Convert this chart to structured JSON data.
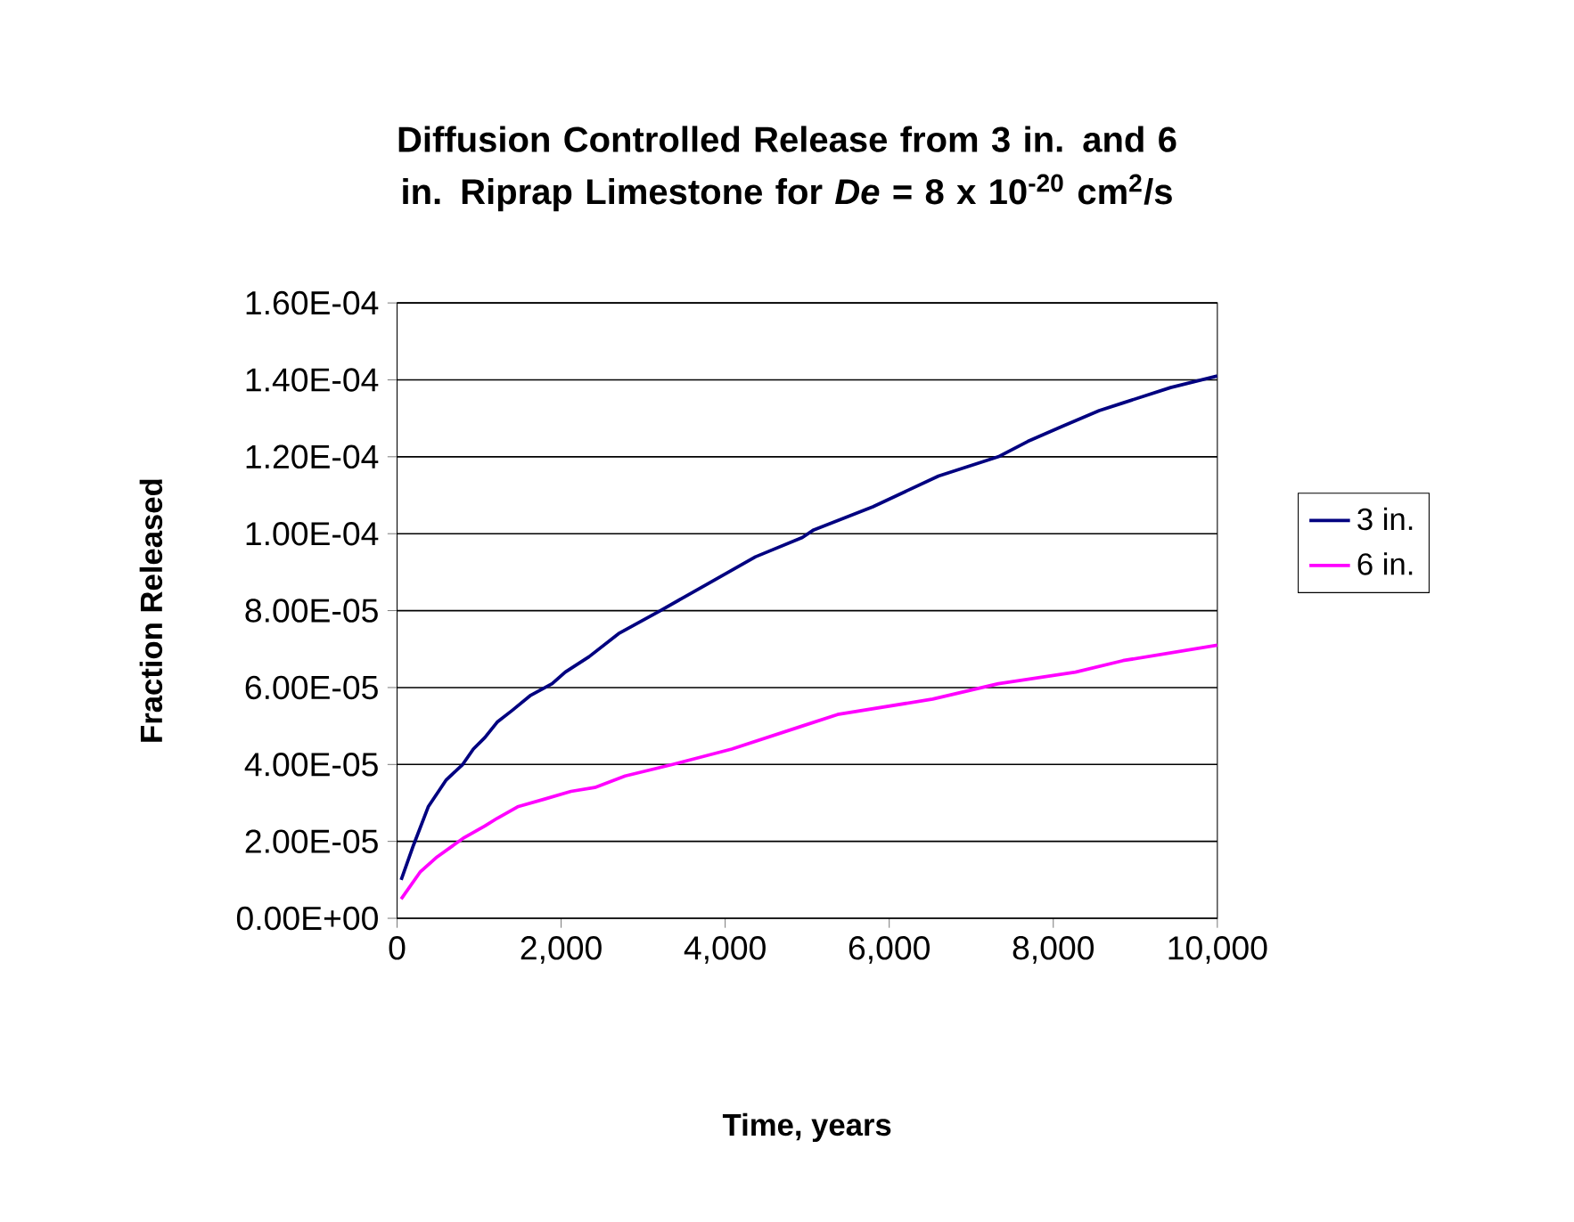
{
  "chart_data": {
    "type": "line",
    "title": "Diffusion Controlled Release from 3 in. and 6 in. Riprap Limestone for *De* = 8 x 10$^{-20}$ cm$^{2}$/s",
    "xlabel": "Time, years",
    "ylabel": "Fraction Released",
    "xlim": [
      0,
      10000
    ],
    "ylim": [
      0,
      0.00016
    ],
    "xticks": [
      0,
      {
        "value": 2000,
        "label": "2,000"
      },
      {
        "value": 4000,
        "label": "4,000"
      },
      {
        "value": 6000,
        "label": "6,000"
      },
      {
        "value": 8000,
        "label": "8,000"
      },
      {
        "value": 10000,
        "label": "10,000"
      }
    ],
    "yticks": [
      {
        "value": 0,
        "label": "0.00E+00"
      },
      {
        "value": 2e-05,
        "label": "2.00E-05"
      },
      {
        "value": 4e-05,
        "label": "4.00E-05"
      },
      {
        "value": 6e-05,
        "label": "6.00E-05"
      },
      {
        "value": 8e-05,
        "label": "8.00E-05"
      },
      {
        "value": 0.0001,
        "label": "1.00E-04"
      },
      {
        "value": 0.00012,
        "label": "1.20E-04"
      },
      {
        "value": 0.00014,
        "label": "1.40E-04"
      },
      {
        "value": 0.00016,
        "label": "1.60E-04"
      }
    ],
    "grid": "y",
    "legend": "right",
    "marker": "none",
    "line_style": "solid",
    "series": [
      {
        "name": "3 in.",
        "color": "#000080",
        "x": [
          50,
          200,
          380,
          600,
          800,
          930,
          1070,
          1220,
          1400,
          1630,
          1890,
          2050,
          2340,
          2700,
          3210,
          3790,
          4370,
          4940,
          5080,
          5800,
          6600,
          7330,
          7690,
          8120,
          8560,
          8850,
          9430,
          10000
        ],
        "values": [
          1e-05,
          1.9e-05,
          2.9e-05,
          3.6e-05,
          4e-05,
          4.4e-05,
          4.7e-05,
          5.1e-05,
          5.4e-05,
          5.8e-05,
          6.1e-05,
          6.4e-05,
          6.8e-05,
          7.4e-05,
          8e-05,
          8.7e-05,
          9.4e-05,
          9.9e-05,
          0.000101,
          0.000107,
          0.000115,
          0.00012,
          0.000124,
          0.000128,
          0.000132,
          0.000134,
          0.000138,
          0.000141
        ]
      },
      {
        "name": "6 in.",
        "color": "#ff00ff",
        "x": [
          50,
          280,
          490,
          820,
          1070,
          1220,
          1470,
          1800,
          2120,
          2410,
          2780,
          3360,
          4080,
          4940,
          5370,
          6530,
          7330,
          8270,
          8850,
          10000
        ],
        "values": [
          5e-06,
          1.2e-05,
          1.6e-05,
          2.1e-05,
          2.4e-05,
          2.6e-05,
          2.9e-05,
          3.1e-05,
          3.3e-05,
          3.4e-05,
          3.7e-05,
          4e-05,
          4.4e-05,
          5e-05,
          5.3e-05,
          5.7e-05,
          6.1e-05,
          6.4e-05,
          6.7e-05,
          7.1e-05
        ]
      }
    ]
  }
}
